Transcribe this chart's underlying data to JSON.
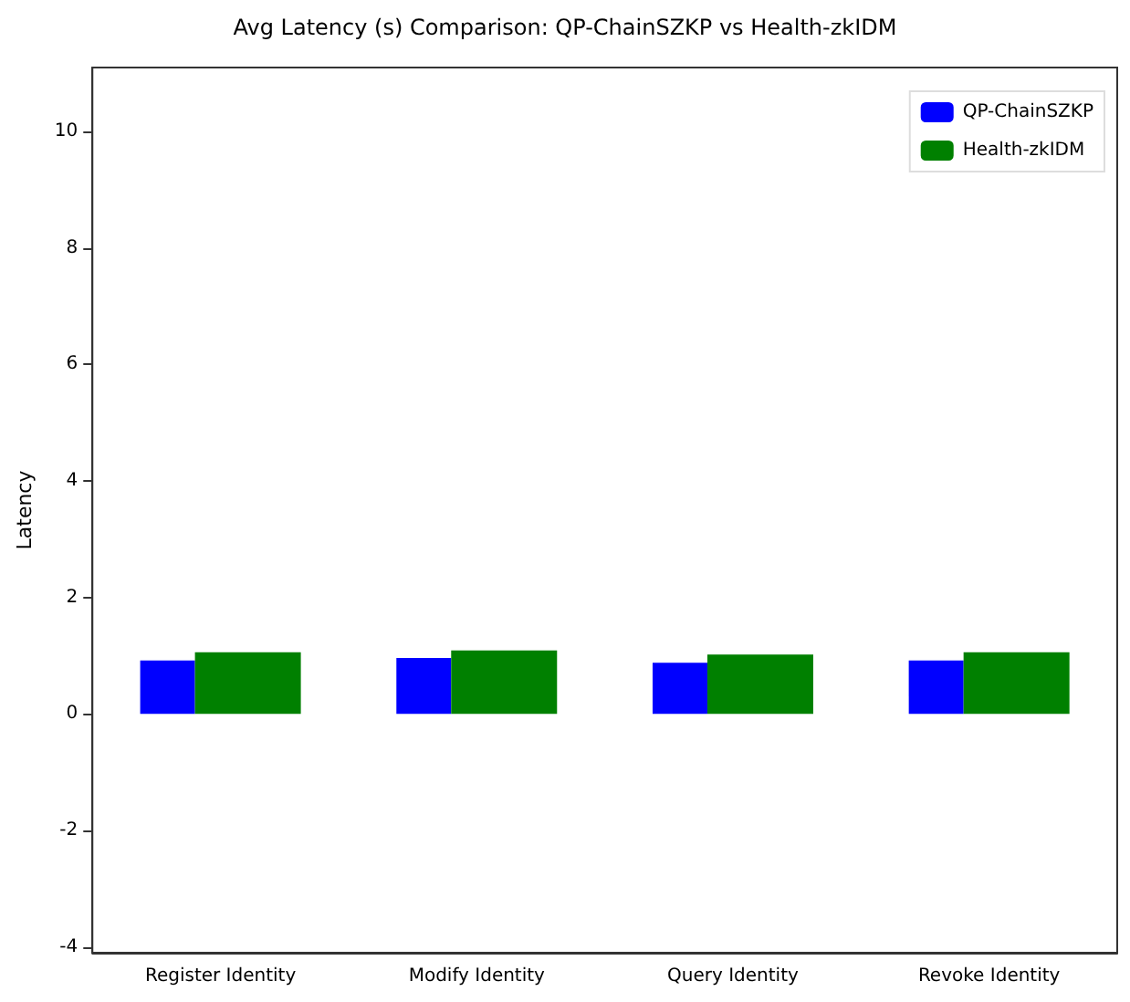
{
  "chart_data": {
    "type": "bar",
    "title": "Avg Latency (s) Comparison: QP-ChainSZKP vs Health-zkIDM",
    "ylabel": "Latency",
    "categories": [
      "Register Identity",
      "Modify Identity",
      "Query Identity",
      "Revoke Identity"
    ],
    "series": [
      {
        "name": "QP-ChainSZKP",
        "color": "#0000ff",
        "values": [
          0.92,
          0.96,
          0.88,
          0.92
        ]
      },
      {
        "name": "Health-zkIDM",
        "color": "#008000",
        "values": [
          1.06,
          1.09,
          1.02,
          1.06
        ]
      }
    ],
    "ylim": [
      -4.1,
      11.1
    ],
    "yticks": [
      -4,
      -2,
      0,
      2,
      4,
      6,
      8,
      10
    ],
    "grid": false,
    "legend": "top right"
  }
}
